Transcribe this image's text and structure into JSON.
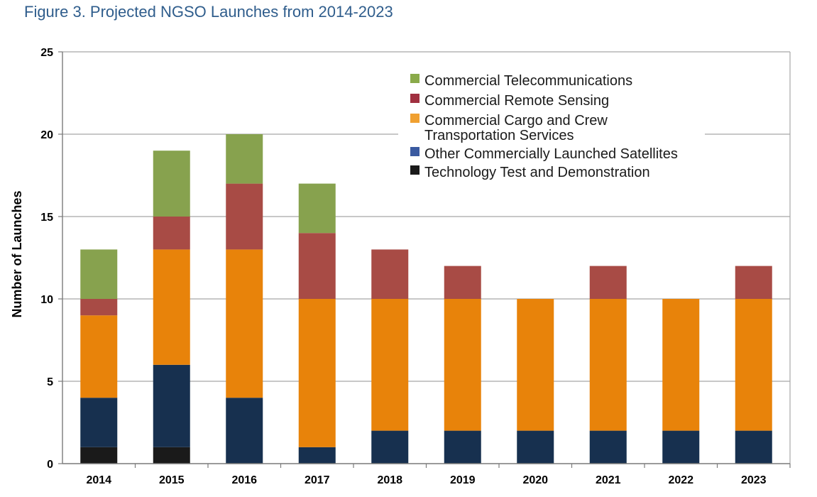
{
  "figure_title": "Figure 3. Projected NGSO Launches from 2014-2023",
  "chart_data": {
    "type": "bar",
    "stacked": true,
    "title": "Figure 3. Projected NGSO Launches from 2014-2023",
    "xlabel": "",
    "ylabel": "Number of Launches",
    "ylim": [
      0,
      25
    ],
    "yticks": [
      0,
      5,
      10,
      15,
      20,
      25
    ],
    "grid": true,
    "legend_position": "top-right",
    "categories": [
      "2014",
      "2015",
      "2016",
      "2017",
      "2018",
      "2019",
      "2020",
      "2021",
      "2022",
      "2023"
    ],
    "series": [
      {
        "name": "Technology Test and Demonstration",
        "color": "#1a1a1a",
        "values": [
          1,
          1,
          0,
          0,
          0,
          0,
          0,
          0,
          0,
          0
        ]
      },
      {
        "name": "Other Commercially Launched Satellites",
        "color": "#17304f",
        "values": [
          3,
          5,
          4,
          1,
          2,
          2,
          2,
          2,
          2,
          2
        ]
      },
      {
        "name": "Commercial Cargo and Crew Transportation Services",
        "legend_lines": [
          "Commercial Cargo and Crew",
          "Transportation Services"
        ],
        "color": "#e8830a",
        "values": [
          5,
          7,
          9,
          9,
          8,
          8,
          8,
          8,
          8,
          8
        ]
      },
      {
        "name": "Commercial Remote Sensing",
        "color": "#a84b45",
        "values": [
          1,
          2,
          4,
          4,
          3,
          2,
          0,
          2,
          0,
          2
        ]
      },
      {
        "name": "Commercial Telecommunications",
        "color": "#87a24e",
        "values": [
          3,
          4,
          3,
          3,
          0,
          0,
          0,
          0,
          0,
          0
        ]
      }
    ],
    "legend_order": [
      4,
      3,
      2,
      1,
      0
    ],
    "legend_swatch_colors": [
      "#8aaa4a",
      "#a03040",
      "#f0a030",
      "#3a5aa0",
      "#1a1a1a"
    ]
  }
}
